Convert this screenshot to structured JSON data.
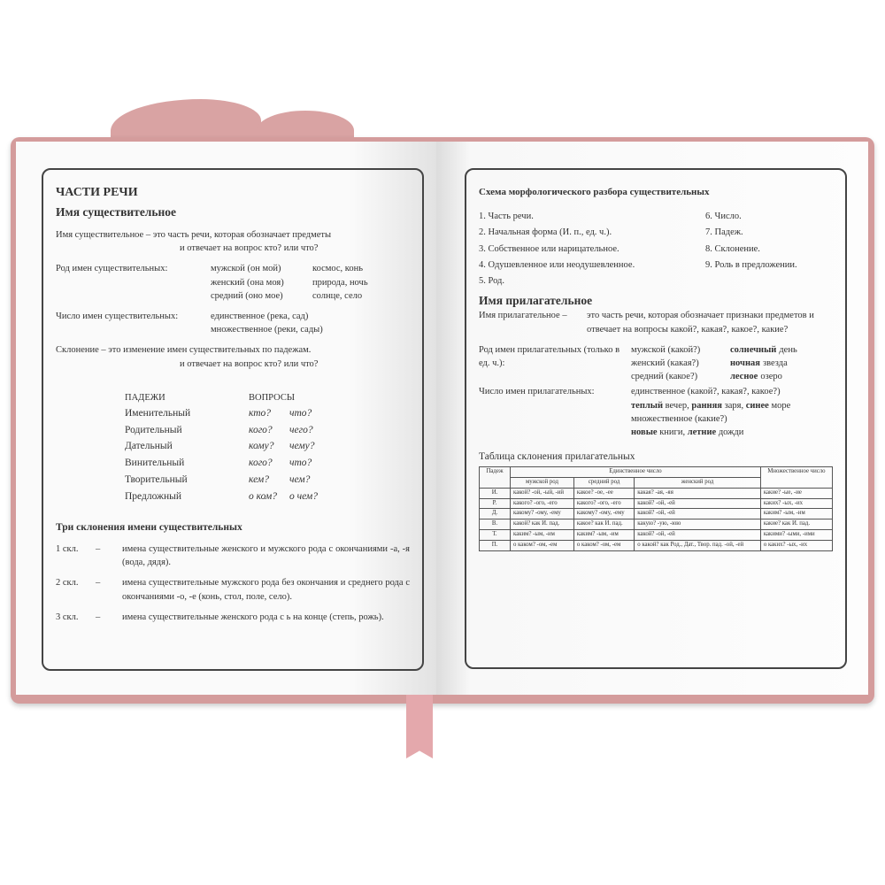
{
  "colors": {
    "cover": "#d49c9c",
    "ribbon": "#e4a8ac",
    "border": "#444444"
  },
  "left": {
    "title": "ЧАСТИ РЕЧИ",
    "noun_heading": "Имя существительное",
    "def1": "Имя существительное – это часть речи, которая обозначает предметы",
    "def2": "и отвечает на вопрос кто? или что?",
    "gender_label": "Род имен существительных:",
    "genders": [
      [
        "мужской (он мой)",
        "космос, конь"
      ],
      [
        "женский (она моя)",
        "природа, ночь"
      ],
      [
        "средний (оно мое)",
        "солнце, село"
      ]
    ],
    "number_label": "Число имен существительных:",
    "numbers": [
      "единственное (река, сад)",
      "множественное (реки, сады)"
    ],
    "decl_def1": "Склонение – это изменение имен существительных по падежам.",
    "decl_def2": "и отвечает на вопрос кто? или что?",
    "cases_header": [
      "ПАДЕЖИ",
      "ВОПРОСЫ"
    ],
    "cases": [
      [
        "Именительный",
        "кто?",
        "что?"
      ],
      [
        "Родительный",
        "кого?",
        "чего?"
      ],
      [
        "Дательный",
        "кому?",
        "чему?"
      ],
      [
        "Винительный",
        "кого?",
        "что?"
      ],
      [
        "Творительный",
        "кем?",
        "чем?"
      ],
      [
        "Предложный",
        "о ком?",
        "о чем?"
      ]
    ],
    "three_heading": "Три склонения имени существительных",
    "declensions": [
      [
        "1 скл.",
        "–",
        "имена существительные женского и мужского рода с окончаниями -а, -я (вода, дядя)."
      ],
      [
        "2 скл.",
        "–",
        "имена существительные мужского рода без окончания и среднего рода с окончаниями -о, -е (конь, стол, поле, село)."
      ],
      [
        "3 скл.",
        "–",
        "имена существительные женского рода с ь на конце (степь, рожь)."
      ]
    ]
  },
  "right": {
    "scheme_heading": "Схема морфологического разбора существительных",
    "scheme_a": [
      "1. Часть речи.",
      "2. Начальная форма (И. п., ед. ч.).",
      "3. Собственное или нарицательное.",
      "4. Одушевленное или неодушевленное.",
      "5. Род."
    ],
    "scheme_b": [
      "6. Число.",
      "7. Падеж.",
      "8. Склонение.",
      "9. Роль в предложении."
    ],
    "adj_heading": "Имя прилагательное",
    "adj_def_label": "Имя прилагательное –",
    "adj_def": "это часть речи, которая обозначает признаки предметов и отвечает на вопросы какой?, какая?, какое?, какие?",
    "adj_gender_label": "Род имен прилагательных (только в ед. ч.):",
    "adj_genders": [
      [
        "мужской (какой?)",
        "солнечный",
        "день"
      ],
      [
        "женский (какая?)",
        "ночная",
        "звезда"
      ],
      [
        "средний (какое?)",
        "лесное",
        "озеро"
      ]
    ],
    "adj_number_label": "Число имен прилагательных:",
    "adj_sing": "единственное (какой?, какая?, какое?)",
    "adj_sing_ex": [
      [
        "теплый",
        "вечер,"
      ],
      [
        "ранняя",
        "заря,"
      ],
      [
        "синее",
        "море"
      ]
    ],
    "adj_plur": "множественное (какие?)",
    "adj_plur_ex": [
      [
        "новые",
        "книги,"
      ],
      [
        "летние",
        "дожди"
      ]
    ],
    "table_heading": "Таблица склонения прилагательных",
    "table_header": {
      "case": "Падеж",
      "singular": "Единственное число",
      "plural": "Множественное число",
      "cols": [
        "мужской род",
        "средний род",
        "женский род"
      ]
    },
    "table_rows": [
      [
        "И.",
        "какой? -ой, -ый, -ий",
        "какое? -ое, -ее",
        "какая? -ая, -яя",
        "какие? -ые, -ие"
      ],
      [
        "Р.",
        "какого? -ого, -его",
        "какого? -ого, -его",
        "какой? -ой, -ей",
        "каких? -ых, -их"
      ],
      [
        "Д.",
        "какому? -ому, -ему",
        "какому? -ому, -ему",
        "какой? -ой, -ей",
        "каким? -ым, -им"
      ],
      [
        "В.",
        "какой? как И. пад.",
        "какое? как И. пад.",
        "какую? -ую, -юю",
        "какие? как И. пад."
      ],
      [
        "Т.",
        "каким? -ым, -им",
        "каким? -ым, -им",
        "какой? -ой, -ей",
        "какими? -ыми, -ими"
      ],
      [
        "П.",
        "о каком? -ом, -ем",
        "о каком? -ом, -ем",
        "о какой? как Род., Дат., Твор. пад. -ой, -ей",
        "о каких? -ых, -их"
      ]
    ]
  }
}
